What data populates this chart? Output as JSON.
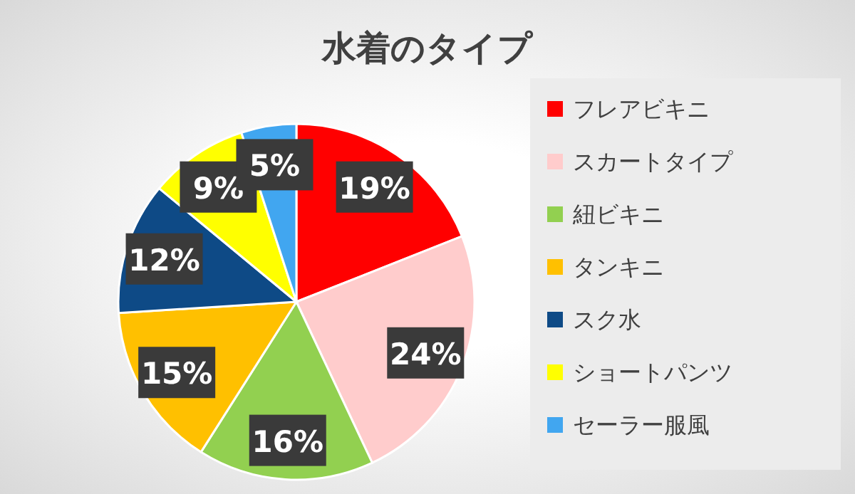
{
  "chart_data": {
    "type": "pie",
    "title": "水着のタイプ",
    "categories": [
      "フレアビキニ",
      "スカートタイプ",
      "紐ビキニ",
      "タンキニ",
      "スク水",
      "ショートパンツ",
      "セーラー服風"
    ],
    "values": [
      19,
      24,
      16,
      15,
      12,
      9,
      5
    ],
    "colors": [
      "#ff0000",
      "#ffcccc",
      "#92d050",
      "#ffc000",
      "#0e4a86",
      "#ffff00",
      "#41a6f0"
    ],
    "value_labels": [
      "19%",
      "24%",
      "16%",
      "15%",
      "12%",
      "9%",
      "5%"
    ],
    "legend": "right"
  }
}
